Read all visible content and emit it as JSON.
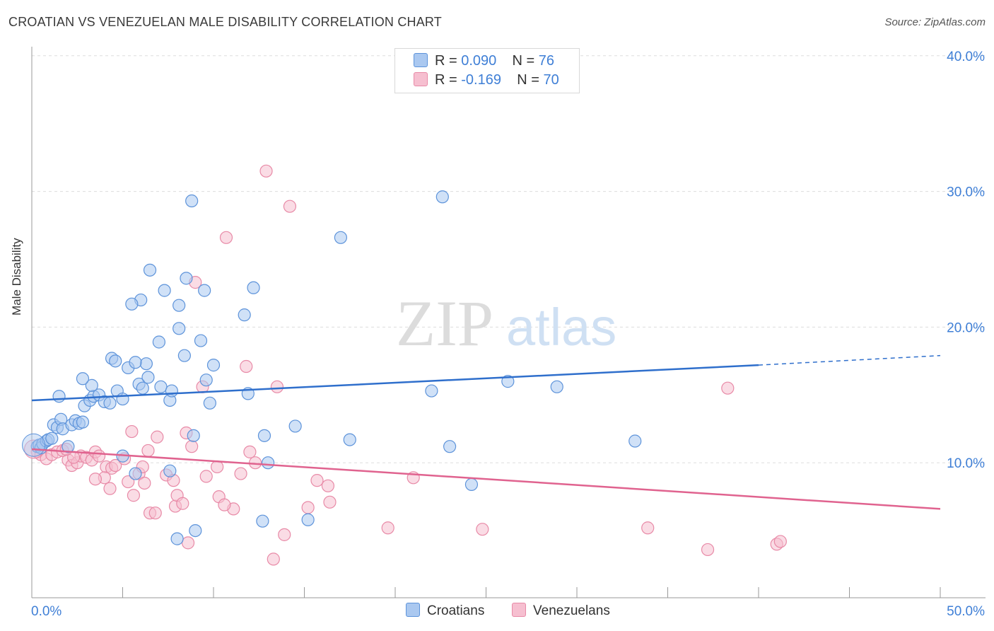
{
  "header": {
    "title": "CROATIAN VS VENEZUELAN MALE DISABILITY CORRELATION CHART",
    "source": "Source: ZipAtlas.com"
  },
  "legend": {
    "rows": [
      {
        "r_label": "R = ",
        "r_value": "0.090",
        "n_label": "N = ",
        "n_value": "76"
      },
      {
        "r_label": "R = ",
        "r_value": "-0.169",
        "n_label": "N = ",
        "n_value": "70"
      }
    ],
    "bottom": [
      "Croatians",
      "Venezuelans"
    ]
  },
  "watermark": {
    "zip": "ZIP",
    "atlas": "atlas"
  },
  "colors": {
    "croatians_fill": "#aac8f0",
    "croatians_stroke": "#5d93da",
    "croatians_line": "#2f6fcc",
    "venezuelans_fill": "#f6bfd0",
    "venezuelans_stroke": "#e88aa7",
    "venezuelans_line": "#e0638f",
    "axis_text": "#3f7fd6",
    "grid": "#dddddd"
  },
  "chart_data": {
    "type": "scatter",
    "title": "CROATIAN VS VENEZUELAN MALE DISABILITY CORRELATION CHART",
    "xlabel": "",
    "ylabel": "Male Disability",
    "xlim": [
      0,
      50
    ],
    "ylim": [
      0,
      40
    ],
    "x_tick_labels": [
      "0.0%",
      "50.0%"
    ],
    "y_tick_labels": [
      "10.0%",
      "20.0%",
      "30.0%",
      "40.0%"
    ],
    "y_ticks": [
      10,
      20,
      30,
      40
    ],
    "grid": "horizontal dashed",
    "series": [
      {
        "name": "Croatians",
        "r": 0.09,
        "n": 76,
        "trend": {
          "x": [
            0,
            40
          ],
          "y": [
            14.6,
            17.2
          ],
          "dashed_to": [
            50,
            17.9
          ]
        },
        "points": [
          [
            0.3,
            11.2
          ],
          [
            0.4,
            11.3
          ],
          [
            0.5,
            11.1
          ],
          [
            0.6,
            11.4
          ],
          [
            0.8,
            11.6
          ],
          [
            0.9,
            11.7
          ],
          [
            1.1,
            11.8
          ],
          [
            1.2,
            12.8
          ],
          [
            1.4,
            12.6
          ],
          [
            1.6,
            13.2
          ],
          [
            1.7,
            12.5
          ],
          [
            2.0,
            11.2
          ],
          [
            2.2,
            12.8
          ],
          [
            2.4,
            13.1
          ],
          [
            2.6,
            12.9
          ],
          [
            2.8,
            13.0
          ],
          [
            2.9,
            14.2
          ],
          [
            3.2,
            14.6
          ],
          [
            1.5,
            14.9
          ],
          [
            3.4,
            14.9
          ],
          [
            3.7,
            15.0
          ],
          [
            4.0,
            14.5
          ],
          [
            4.3,
            14.4
          ],
          [
            4.7,
            15.3
          ],
          [
            5.0,
            14.7
          ],
          [
            3.3,
            15.7
          ],
          [
            2.8,
            16.2
          ],
          [
            4.4,
            17.7
          ],
          [
            4.6,
            17.5
          ],
          [
            5.3,
            17.0
          ],
          [
            5.9,
            15.8
          ],
          [
            6.1,
            15.5
          ],
          [
            6.4,
            16.3
          ],
          [
            6.3,
            17.3
          ],
          [
            7.1,
            15.6
          ],
          [
            7.6,
            14.6
          ],
          [
            7.7,
            15.3
          ],
          [
            8.4,
            17.9
          ],
          [
            8.9,
            12.0
          ],
          [
            9.6,
            16.1
          ],
          [
            9.8,
            14.4
          ],
          [
            10.0,
            17.2
          ],
          [
            11.9,
            15.1
          ],
          [
            12.8,
            12.0
          ],
          [
            13.0,
            10.0
          ],
          [
            14.5,
            12.7
          ],
          [
            17.5,
            11.7
          ],
          [
            11.7,
            20.9
          ],
          [
            12.2,
            22.9
          ],
          [
            9.5,
            22.7
          ],
          [
            8.1,
            21.6
          ],
          [
            8.5,
            23.6
          ],
          [
            7.3,
            22.7
          ],
          [
            6.0,
            22.0
          ],
          [
            6.5,
            24.2
          ],
          [
            5.5,
            21.7
          ],
          [
            8.1,
            19.9
          ],
          [
            9.3,
            19.0
          ],
          [
            7.0,
            18.9
          ],
          [
            5.7,
            17.4
          ],
          [
            17.0,
            26.6
          ],
          [
            22.6,
            29.6
          ],
          [
            8.8,
            29.3
          ],
          [
            22.0,
            15.3
          ],
          [
            26.2,
            16.0
          ],
          [
            28.9,
            15.6
          ],
          [
            23.0,
            11.2
          ],
          [
            24.2,
            8.4
          ],
          [
            33.2,
            11.6
          ],
          [
            7.6,
            9.4
          ],
          [
            5.7,
            9.2
          ],
          [
            5.0,
            10.5
          ],
          [
            8.0,
            4.4
          ],
          [
            9.0,
            5.0
          ],
          [
            12.7,
            5.7
          ],
          [
            15.2,
            5.8
          ]
        ]
      },
      {
        "name": "Venezuelans",
        "r": -0.169,
        "n": 70,
        "trend": {
          "x": [
            0,
            50
          ],
          "y": [
            11.0,
            6.6
          ]
        },
        "points": [
          [
            0.3,
            10.8
          ],
          [
            0.5,
            10.6
          ],
          [
            0.8,
            10.3
          ],
          [
            1.1,
            10.6
          ],
          [
            1.4,
            10.8
          ],
          [
            1.7,
            10.9
          ],
          [
            2.0,
            10.2
          ],
          [
            2.2,
            9.8
          ],
          [
            2.5,
            10.0
          ],
          [
            2.7,
            10.5
          ],
          [
            3.0,
            10.4
          ],
          [
            3.3,
            10.2
          ],
          [
            3.5,
            10.8
          ],
          [
            3.7,
            10.5
          ],
          [
            4.1,
            9.7
          ],
          [
            4.4,
            9.6
          ],
          [
            4.6,
            9.8
          ],
          [
            4.0,
            8.9
          ],
          [
            4.3,
            8.1
          ],
          [
            5.1,
            10.3
          ],
          [
            5.3,
            8.6
          ],
          [
            5.6,
            7.6
          ],
          [
            5.9,
            9.2
          ],
          [
            6.2,
            8.5
          ],
          [
            6.5,
            6.3
          ],
          [
            6.8,
            6.3
          ],
          [
            6.4,
            10.9
          ],
          [
            6.9,
            11.9
          ],
          [
            7.4,
            9.1
          ],
          [
            7.8,
            8.7
          ],
          [
            7.9,
            6.8
          ],
          [
            8.0,
            7.6
          ],
          [
            8.3,
            7.0
          ],
          [
            8.6,
            4.1
          ],
          [
            8.8,
            11.2
          ],
          [
            8.5,
            12.2
          ],
          [
            5.5,
            12.3
          ],
          [
            9.4,
            15.6
          ],
          [
            9.6,
            9.0
          ],
          [
            10.2,
            9.7
          ],
          [
            10.3,
            7.5
          ],
          [
            10.7,
            26.6
          ],
          [
            11.1,
            6.6
          ],
          [
            11.5,
            9.2
          ],
          [
            11.8,
            17.1
          ],
          [
            12.0,
            10.8
          ],
          [
            12.3,
            10.0
          ],
          [
            12.9,
            31.5
          ],
          [
            13.3,
            2.9
          ],
          [
            13.5,
            15.6
          ],
          [
            13.9,
            4.7
          ],
          [
            14.2,
            28.9
          ],
          [
            15.2,
            6.7
          ],
          [
            15.7,
            8.7
          ],
          [
            16.3,
            8.3
          ],
          [
            16.4,
            7.1
          ],
          [
            9.0,
            23.3
          ],
          [
            19.6,
            5.2
          ],
          [
            21.0,
            8.9
          ],
          [
            24.8,
            5.1
          ],
          [
            33.9,
            5.2
          ],
          [
            37.2,
            3.6
          ],
          [
            38.3,
            15.5
          ],
          [
            41.0,
            4.0
          ],
          [
            41.2,
            4.2
          ],
          [
            3.5,
            8.8
          ],
          [
            6.1,
            9.7
          ],
          [
            10.6,
            6.9
          ],
          [
            2.3,
            10.4
          ],
          [
            1.9,
            11.0
          ]
        ]
      }
    ]
  }
}
